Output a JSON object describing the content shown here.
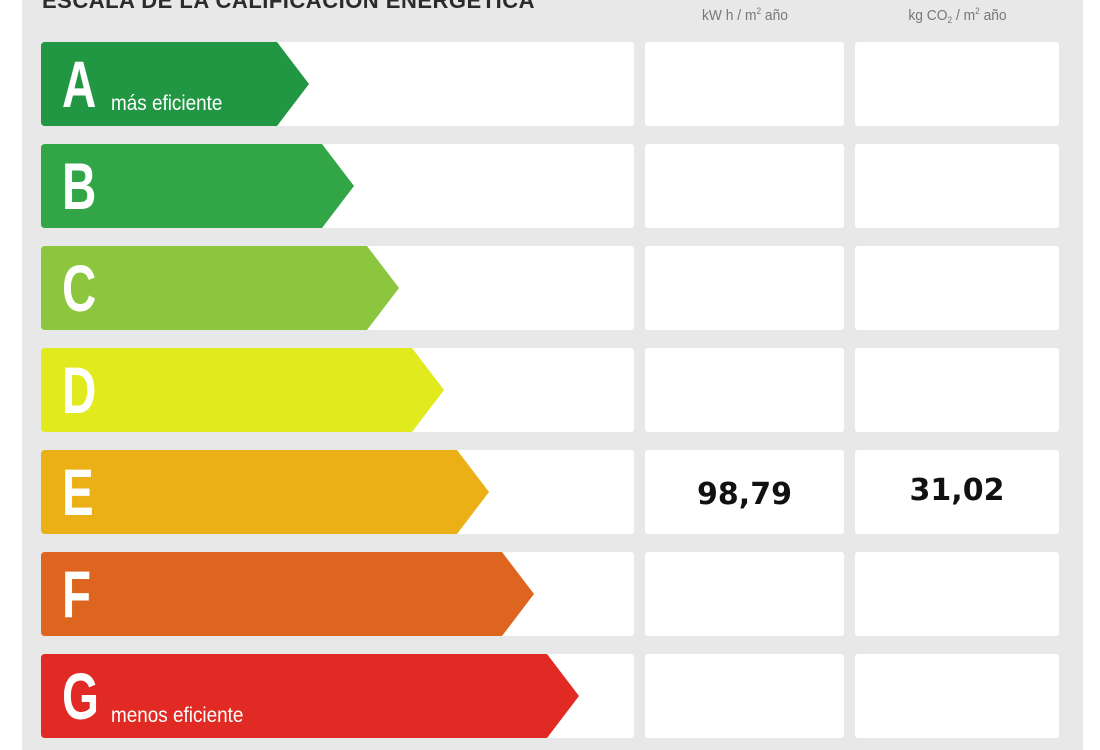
{
  "header": {
    "title": "ESCALA DE LA CALIFICACIÓN ENERGÉTICA",
    "col1_unit_pre": "kW h / m",
    "col1_unit_sup": "2",
    "col1_unit_post": " año",
    "col2_unit_pre": "kg CO",
    "col2_unit_sub": "2",
    "col2_unit_mid": " / m",
    "col2_unit_sup": "2",
    "col2_unit_post": " año"
  },
  "ratings": [
    {
      "letter": "A",
      "label": "más eficiente",
      "color": "#219743",
      "consumption": "",
      "emissions": ""
    },
    {
      "letter": "B",
      "label": "",
      "color": "#32a647",
      "consumption": "",
      "emissions": ""
    },
    {
      "letter": "C",
      "label": "",
      "color": "#8cc63f",
      "consumption": "",
      "emissions": ""
    },
    {
      "letter": "D",
      "label": "",
      "color": "#e1ea1c",
      "consumption": "",
      "emissions": ""
    },
    {
      "letter": "E",
      "label": "",
      "color": "#ebb015",
      "consumption": "98,79",
      "emissions": "31,02"
    },
    {
      "letter": "F",
      "label": "",
      "color": "#de651f",
      "consumption": "",
      "emissions": ""
    },
    {
      "letter": "G",
      "label": "menos eficiente",
      "color": "#e02a23",
      "consumption": "",
      "emissions": ""
    }
  ]
}
